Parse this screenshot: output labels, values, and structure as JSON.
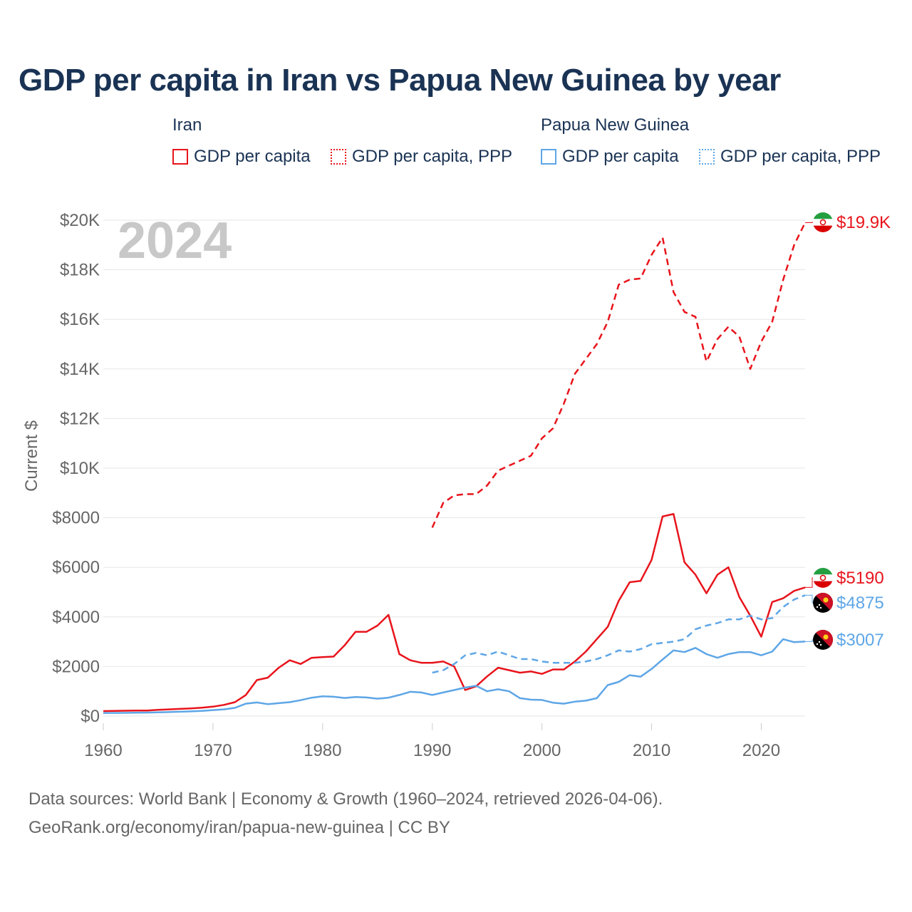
{
  "title": "GDP per capita in Iran vs Papua New Guinea by year",
  "legend": {
    "groups": [
      {
        "country": "Iran",
        "items": [
          "GDP per capita",
          "GDP per capita, PPP"
        ]
      },
      {
        "country": "Papua New Guinea",
        "items": [
          "GDP per capita",
          "GDP per capita, PPP"
        ]
      }
    ]
  },
  "colors": {
    "iran": "#e8141c",
    "png": "#5ea6e6",
    "text": "#1a3354",
    "axis_text": "#666666",
    "year_watermark": "#c8c8c8",
    "grid": "#e6e6e6"
  },
  "year_watermark": "2024",
  "footer": {
    "line1": "Data sources: World Bank | Economy & Growth (1960–2024, retrieved 2026-04-06).",
    "line2": "GeoRank.org/economy/iran/papua-new-guinea | CC BY"
  },
  "chart_data": {
    "type": "line",
    "title": "GDP per capita in Iran vs Papua New Guinea by year",
    "xlabel": "",
    "ylabel": "Current $",
    "xlim": [
      1960,
      2024
    ],
    "ylim": [
      0,
      20000
    ],
    "grid": true,
    "xticks": [
      {
        "value": 1960,
        "label": "1960"
      },
      {
        "value": 1970,
        "label": "1970"
      },
      {
        "value": 1980,
        "label": "1980"
      },
      {
        "value": 1990,
        "label": "1990"
      },
      {
        "value": 2000,
        "label": "2000"
      },
      {
        "value": 2010,
        "label": "2010"
      },
      {
        "value": 2020,
        "label": "2020"
      }
    ],
    "yticks": [
      {
        "value": 0,
        "label": "$0"
      },
      {
        "value": 2000,
        "label": "$2000"
      },
      {
        "value": 4000,
        "label": "$4000"
      },
      {
        "value": 6000,
        "label": "$6000"
      },
      {
        "value": 8000,
        "label": "$8000"
      },
      {
        "value": 10000,
        "label": "$10K"
      },
      {
        "value": 12000,
        "label": "$12K"
      },
      {
        "value": 14000,
        "label": "$14K"
      },
      {
        "value": 16000,
        "label": "$16K"
      },
      {
        "value": 18000,
        "label": "$18K"
      },
      {
        "value": 20000,
        "label": "$20K"
      }
    ],
    "series": [
      {
        "name": "Iran GDP per capita, PPP",
        "country": "Iran",
        "color": "#e8141c",
        "dash": "dashed",
        "x": [
          1990,
          1991,
          1992,
          1993,
          1994,
          1995,
          1996,
          1997,
          1998,
          1999,
          2000,
          2001,
          2002,
          2003,
          2004,
          2005,
          2006,
          2007,
          2008,
          2009,
          2010,
          2011,
          2012,
          2013,
          2014,
          2015,
          2016,
          2017,
          2018,
          2019,
          2020,
          2021,
          2022,
          2023,
          2024
        ],
        "values": [
          7600,
          8600,
          8900,
          8950,
          8950,
          9300,
          9900,
          10100,
          10300,
          10500,
          11200,
          11600,
          12600,
          13800,
          14400,
          15000,
          15900,
          17400,
          17600,
          17650,
          18600,
          19300,
          17100,
          16300,
          16100,
          14300,
          15200,
          15700,
          15300,
          14000,
          15100,
          15900,
          17600,
          19000,
          19900
        ],
        "end_label": "$19.9K"
      },
      {
        "name": "Iran GDP per capita",
        "country": "Iran",
        "color": "#e8141c",
        "dash": "solid",
        "x": [
          1960,
          1961,
          1962,
          1963,
          1964,
          1965,
          1966,
          1967,
          1968,
          1969,
          1970,
          1971,
          1972,
          1973,
          1974,
          1975,
          1976,
          1977,
          1978,
          1979,
          1980,
          1981,
          1982,
          1983,
          1984,
          1985,
          1986,
          1987,
          1988,
          1989,
          1990,
          1991,
          1992,
          1993,
          1994,
          1995,
          1996,
          1997,
          1998,
          1999,
          2000,
          2001,
          2002,
          2003,
          2004,
          2005,
          2006,
          2007,
          2008,
          2009,
          2010,
          2011,
          2012,
          2013,
          2014,
          2015,
          2016,
          2017,
          2018,
          2019,
          2020,
          2021,
          2022,
          2023,
          2024
        ],
        "values": [
          200,
          210,
          215,
          220,
          225,
          250,
          270,
          290,
          310,
          340,
          380,
          450,
          560,
          850,
          1450,
          1550,
          1950,
          2250,
          2100,
          2350,
          2380,
          2400,
          2850,
          3400,
          3400,
          3650,
          4080,
          2500,
          2250,
          2150,
          2150,
          2200,
          2000,
          1050,
          1200,
          1600,
          1950,
          1850,
          1750,
          1800,
          1700,
          1880,
          1880,
          2200,
          2600,
          3100,
          3600,
          4650,
          5400,
          5450,
          6300,
          8050,
          8150,
          6200,
          5700,
          4950,
          5700,
          6000,
          4800,
          4050,
          3200,
          4600,
          4750,
          5050,
          5190
        ],
        "end_label": "$5190"
      },
      {
        "name": "Papua New Guinea GDP per capita, PPP",
        "country": "Papua New Guinea",
        "color": "#5ea6e6",
        "dash": "dashed",
        "x": [
          1990,
          1991,
          1992,
          1993,
          1994,
          1995,
          1996,
          1997,
          1998,
          1999,
          2000,
          2001,
          2002,
          2003,
          2004,
          2005,
          2006,
          2007,
          2008,
          2009,
          2010,
          2011,
          2012,
          2013,
          2014,
          2015,
          2016,
          2017,
          2018,
          2019,
          2020,
          2021,
          2022,
          2023,
          2024
        ],
        "values": [
          1750,
          1850,
          2100,
          2450,
          2550,
          2450,
          2600,
          2450,
          2300,
          2300,
          2200,
          2150,
          2150,
          2150,
          2200,
          2300,
          2450,
          2650,
          2600,
          2700,
          2900,
          2950,
          3000,
          3100,
          3500,
          3650,
          3750,
          3900,
          3900,
          4050,
          3900,
          3950,
          4400,
          4700,
          4875
        ],
        "end_label": "$4875"
      },
      {
        "name": "Papua New Guinea GDP per capita",
        "country": "Papua New Guinea",
        "color": "#5ea6e6",
        "dash": "solid",
        "x": [
          1960,
          1961,
          1962,
          1963,
          1964,
          1965,
          1966,
          1967,
          1968,
          1969,
          1970,
          1971,
          1972,
          1973,
          1974,
          1975,
          1976,
          1977,
          1978,
          1979,
          1980,
          1981,
          1982,
          1983,
          1984,
          1985,
          1986,
          1987,
          1988,
          1989,
          1990,
          1991,
          1992,
          1993,
          1994,
          1995,
          1996,
          1997,
          1998,
          1999,
          2000,
          2001,
          2002,
          2003,
          2004,
          2005,
          2006,
          2007,
          2008,
          2009,
          2010,
          2011,
          2012,
          2013,
          2014,
          2015,
          2016,
          2017,
          2018,
          2019,
          2020,
          2021,
          2022,
          2023,
          2024
        ],
        "values": [
          120,
          125,
          130,
          135,
          140,
          150,
          160,
          175,
          190,
          210,
          240,
          270,
          330,
          500,
          550,
          480,
          520,
          560,
          640,
          740,
          800,
          780,
          730,
          770,
          750,
          700,
          740,
          850,
          980,
          950,
          850,
          950,
          1050,
          1150,
          1220,
          1000,
          1080,
          1000,
          720,
          660,
          650,
          540,
          500,
          580,
          620,
          720,
          1250,
          1380,
          1650,
          1590,
          1900,
          2280,
          2650,
          2580,
          2750,
          2500,
          2350,
          2500,
          2580,
          2580,
          2450,
          2600,
          3100,
          2980,
          3007
        ],
        "end_label": "$3007"
      }
    ]
  }
}
